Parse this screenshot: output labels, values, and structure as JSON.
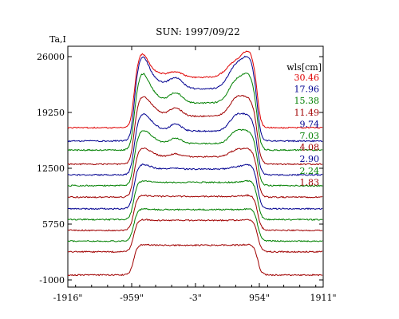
{
  "chart_data": {
    "type": "line",
    "title": "SUN: 1997/09/22",
    "ylabel": "Ta,I",
    "xlabel": "",
    "legend_title": "wls[cm]",
    "legend_position": "top-right",
    "xlim": [
      -1916,
      1911
    ],
    "ylim": [
      -1000,
      26000
    ],
    "x_tick_labels": [
      "-1916\"",
      "-959\"",
      "-3\"",
      "954\"",
      "1911\""
    ],
    "x_ticks": [
      -1916,
      -959,
      -3,
      954,
      1911
    ],
    "y_tick_labels": [
      "26000",
      "19250",
      "12500",
      "5750",
      "-1000"
    ],
    "y_ticks": [
      26000,
      19250,
      12500,
      5750,
      -1000
    ],
    "grid": false,
    "series": [
      {
        "name": "30.46",
        "color": "#e00000",
        "profile": {
          "outside": 17400,
          "plateau": 23500,
          "limb": 25800,
          "features": [
            [
              -700,
              700,
              500
            ],
            [
              -300,
              600,
              300
            ],
            [
              620,
              2000,
              400
            ]
          ]
        }
      },
      {
        "name": "17.96",
        "color": "#000090",
        "profile": {
          "outside": 15800,
          "plateau": 22100,
          "limb": 24900,
          "features": [
            [
              -700,
              1400,
              450
            ],
            [
              -300,
              1300,
              300
            ],
            [
              620,
              2900,
              360
            ]
          ]
        }
      },
      {
        "name": "15.38",
        "color": "#008000",
        "profile": {
          "outside": 14700,
          "plateau": 20400,
          "limb": 23000,
          "features": [
            [
              -700,
              1300,
              400
            ],
            [
              -300,
              1200,
              280
            ],
            [
              620,
              2700,
              340
            ]
          ]
        }
      },
      {
        "name": "11.49",
        "color": "#a00000",
        "profile": {
          "outside": 13000,
          "plateau": 18800,
          "limb": 20400,
          "features": [
            [
              -700,
              1100,
              380
            ],
            [
              -300,
              1000,
              260
            ],
            [
              620,
              2200,
              320
            ]
          ]
        }
      },
      {
        "name": "9.74",
        "color": "#000090",
        "profile": {
          "outside": 11700,
          "plateau": 17000,
          "limb": 18400,
          "features": [
            [
              -700,
              900,
              360
            ],
            [
              -300,
              850,
              250
            ],
            [
              620,
              1900,
              310
            ]
          ]
        }
      },
      {
        "name": "7.03",
        "color": "#008000",
        "profile": {
          "outside": 10400,
          "plateau": 15500,
          "limb": 16600,
          "features": [
            [
              -700,
              700,
              340
            ],
            [
              -300,
              650,
              240
            ],
            [
              620,
              1500,
              300
            ]
          ]
        }
      },
      {
        "name": "4.08",
        "color": "#a00000",
        "profile": {
          "outside": 9000,
          "plateau": 13900,
          "limb": 14700,
          "features": [
            [
              -700,
              400,
              320
            ],
            [
              -300,
              350,
              220
            ],
            [
              620,
              800,
              300
            ]
          ]
        }
      },
      {
        "name": "2.90",
        "color": "#000090",
        "profile": {
          "outside": 7600,
          "plateau": 12400,
          "limb": 12900,
          "features": [
            [
              -700,
              150,
              300
            ],
            [
              -300,
              120,
              200
            ],
            [
              620,
              250,
              300
            ]
          ]
        }
      },
      {
        "name": "2.24",
        "color": "#008000",
        "profile": {
          "outside": 6300,
          "plateau": 10800,
          "limb": 11000,
          "features": []
        }
      },
      {
        "name": "1.83",
        "color": "#a00000",
        "profile": {
          "outside": 5000,
          "plateau": 9100,
          "limb": 9250,
          "features": []
        }
      },
      {
        "name": "",
        "color": "#008000",
        "profile": {
          "outside": 3700,
          "plateau": 7500,
          "limb": 7600,
          "features": []
        }
      },
      {
        "name": "",
        "color": "#a00000",
        "profile": {
          "outside": 2400,
          "plateau": 6200,
          "limb": 6300,
          "features": []
        }
      },
      {
        "name": "",
        "color": "#a00000",
        "profile": {
          "outside": -400,
          "plateau": 3200,
          "limb": 3300,
          "features": []
        }
      }
    ]
  }
}
